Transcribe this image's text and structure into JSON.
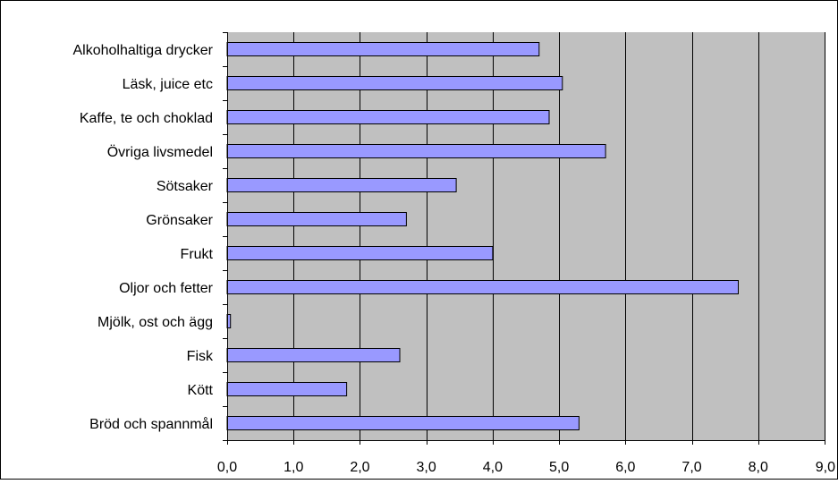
{
  "chart_data": {
    "type": "bar",
    "orientation": "horizontal",
    "categories": [
      "Alkoholhaltiga drycker",
      "Läsk, juice etc",
      "Kaffe, te och choklad",
      "Övriga livsmedel",
      "Sötsaker",
      "Grönsaker",
      "Frukt",
      "Oljor och fetter",
      "Mjölk, ost och ägg",
      "Fisk",
      "Kött",
      "Bröd och spannmål"
    ],
    "values": [
      4.7,
      5.05,
      4.85,
      5.7,
      3.45,
      2.7,
      4.0,
      7.7,
      0.05,
      2.6,
      1.8,
      5.3
    ],
    "xlim": [
      0,
      9
    ],
    "x_ticks": [
      "0,0",
      "1,0",
      "2,0",
      "3,0",
      "4,0",
      "5,0",
      "6,0",
      "7,0",
      "8,0",
      "9,0"
    ],
    "title": "",
    "xlabel": "",
    "ylabel": "",
    "grid": "vertical",
    "legend": "none",
    "colors": {
      "bar_fill": "#9999ff",
      "bar_stroke": "#000000",
      "plot_background": "#c0c0c0",
      "gridline": "#000000"
    }
  }
}
